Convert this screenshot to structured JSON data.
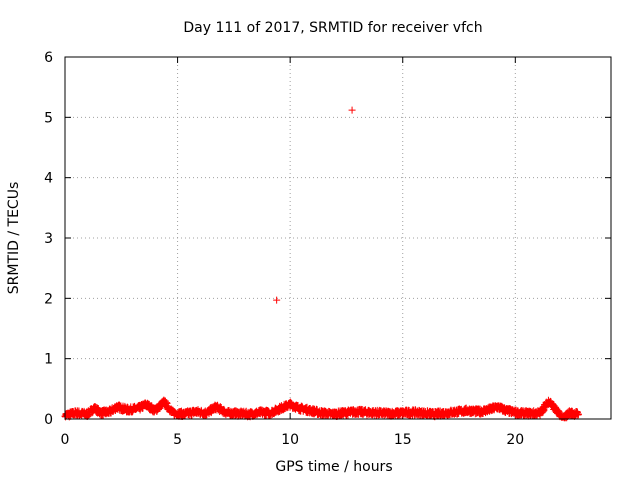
{
  "chart_data": {
    "type": "scatter",
    "title": "Day 111 of 2017, SRMTID for receiver vfch",
    "xlabel": "GPS time / hours",
    "ylabel": "SRMTID / TECUs",
    "xlim": [
      0,
      24.25
    ],
    "ylim": [
      0,
      6
    ],
    "xticks": [
      0,
      5,
      10,
      15,
      20
    ],
    "yticks": [
      0,
      1,
      2,
      3,
      4,
      5,
      6
    ],
    "grid": true,
    "marker": "+",
    "color": "#ff0000",
    "series": [
      {
        "name": "vfch",
        "outliers": [
          {
            "x": 9.4,
            "y": 1.97
          },
          {
            "x": 12.75,
            "y": 5.12
          }
        ],
        "baseline": [
          {
            "x": 0.0,
            "y": 0.06
          },
          {
            "x": 0.5,
            "y": 0.1
          },
          {
            "x": 1.0,
            "y": 0.08
          },
          {
            "x": 1.3,
            "y": 0.18
          },
          {
            "x": 1.6,
            "y": 0.1
          },
          {
            "x": 2.0,
            "y": 0.12
          },
          {
            "x": 2.3,
            "y": 0.2
          },
          {
            "x": 2.8,
            "y": 0.15
          },
          {
            "x": 3.3,
            "y": 0.18
          },
          {
            "x": 3.6,
            "y": 0.24
          },
          {
            "x": 4.0,
            "y": 0.14
          },
          {
            "x": 4.4,
            "y": 0.28
          },
          {
            "x": 4.8,
            "y": 0.1
          },
          {
            "x": 5.3,
            "y": 0.08
          },
          {
            "x": 5.8,
            "y": 0.12
          },
          {
            "x": 6.3,
            "y": 0.1
          },
          {
            "x": 6.7,
            "y": 0.2
          },
          {
            "x": 7.2,
            "y": 0.1
          },
          {
            "x": 7.7,
            "y": 0.09
          },
          {
            "x": 8.2,
            "y": 0.08
          },
          {
            "x": 8.7,
            "y": 0.11
          },
          {
            "x": 9.1,
            "y": 0.1
          },
          {
            "x": 9.6,
            "y": 0.18
          },
          {
            "x": 10.0,
            "y": 0.24
          },
          {
            "x": 10.4,
            "y": 0.18
          },
          {
            "x": 10.9,
            "y": 0.14
          },
          {
            "x": 11.4,
            "y": 0.1
          },
          {
            "x": 11.9,
            "y": 0.08
          },
          {
            "x": 12.4,
            "y": 0.1
          },
          {
            "x": 12.9,
            "y": 0.12
          },
          {
            "x": 13.4,
            "y": 0.11
          },
          {
            "x": 13.9,
            "y": 0.1
          },
          {
            "x": 14.4,
            "y": 0.09
          },
          {
            "x": 14.9,
            "y": 0.1
          },
          {
            "x": 15.4,
            "y": 0.11
          },
          {
            "x": 15.9,
            "y": 0.1
          },
          {
            "x": 16.4,
            "y": 0.08
          },
          {
            "x": 16.9,
            "y": 0.1
          },
          {
            "x": 17.4,
            "y": 0.12
          },
          {
            "x": 17.9,
            "y": 0.14
          },
          {
            "x": 18.4,
            "y": 0.12
          },
          {
            "x": 18.9,
            "y": 0.16
          },
          {
            "x": 19.2,
            "y": 0.2
          },
          {
            "x": 19.6,
            "y": 0.14
          },
          {
            "x": 20.1,
            "y": 0.1
          },
          {
            "x": 20.6,
            "y": 0.09
          },
          {
            "x": 21.1,
            "y": 0.1
          },
          {
            "x": 21.5,
            "y": 0.3
          },
          {
            "x": 21.8,
            "y": 0.15
          },
          {
            "x": 22.1,
            "y": 0.0
          },
          {
            "x": 22.4,
            "y": 0.1
          },
          {
            "x": 22.8,
            "y": 0.08
          }
        ]
      }
    ]
  }
}
